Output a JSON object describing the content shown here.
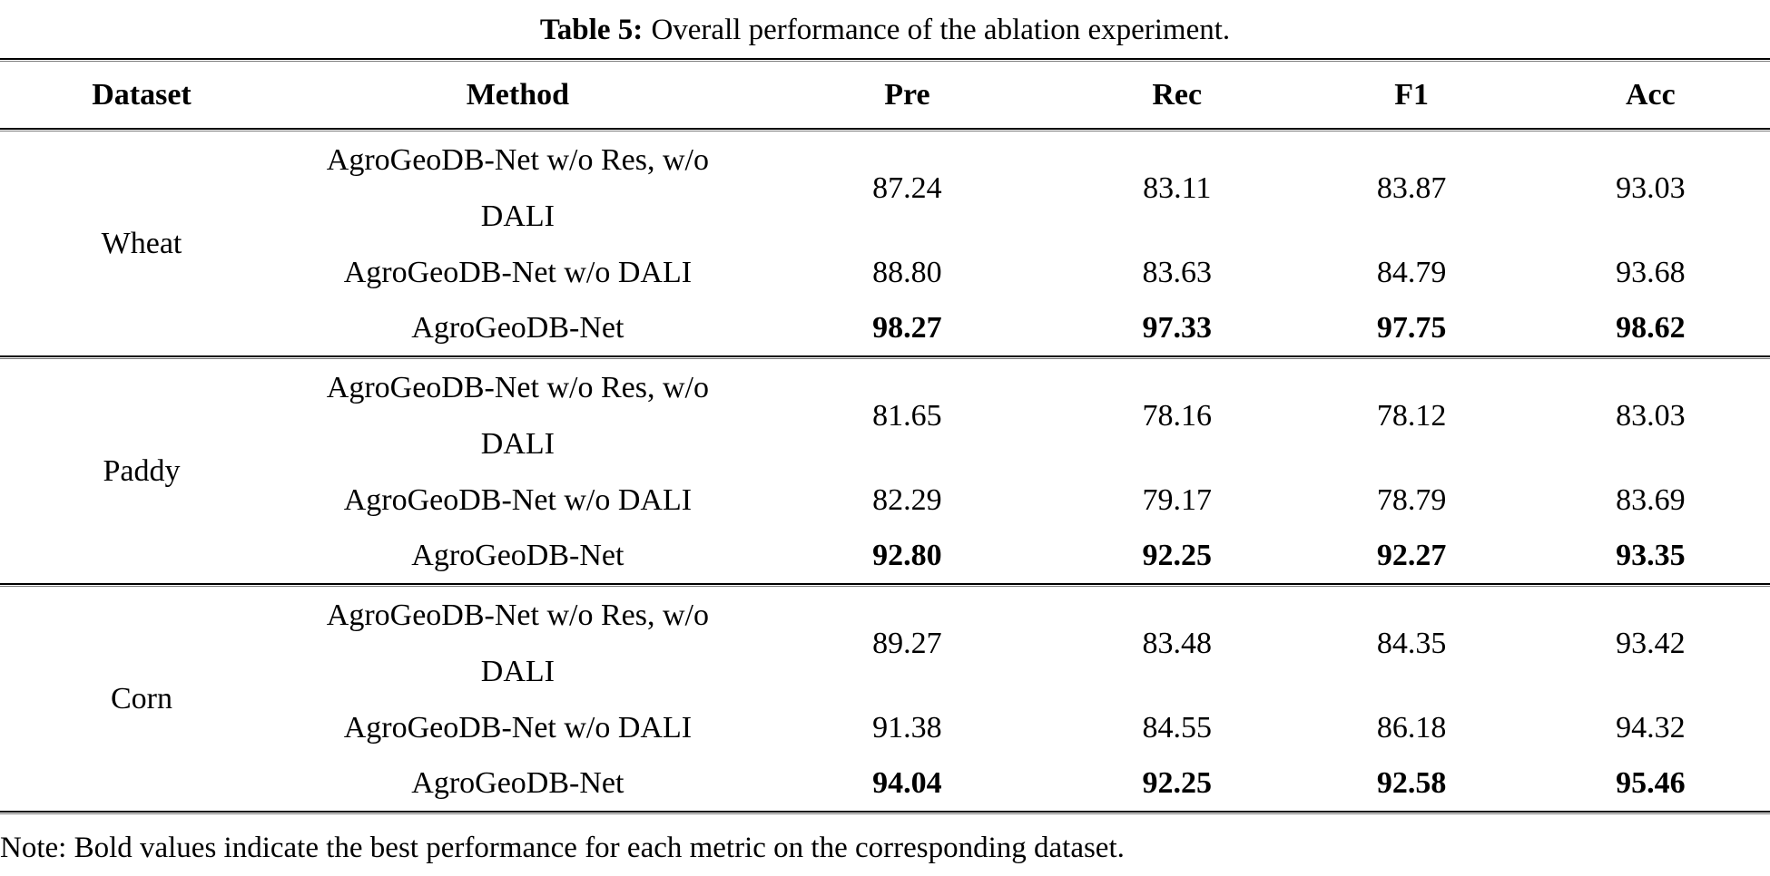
{
  "title": {
    "label": "Table 5:",
    "text": "Overall performance of the ablation experiment."
  },
  "table": {
    "headers": [
      "Dataset",
      "Method",
      "Pre",
      "Rec",
      "F1",
      "Acc"
    ],
    "sections": [
      {
        "dataset": "Wheat",
        "rows": [
          {
            "method": "AgroGeoDB-Net w/o Res, w/o\nDALI",
            "values": [
              "87.24",
              "83.11",
              "83.87",
              "93.03"
            ],
            "best": false
          },
          {
            "method": "AgroGeoDB-Net w/o DALI",
            "values": [
              "88.80",
              "83.63",
              "84.79",
              "93.68"
            ],
            "best": false
          },
          {
            "method": "AgroGeoDB-Net",
            "values": [
              "98.27",
              "97.33",
              "97.75",
              "98.62"
            ],
            "best": true
          }
        ]
      },
      {
        "dataset": "Paddy",
        "rows": [
          {
            "method": "AgroGeoDB-Net w/o Res, w/o\nDALI",
            "values": [
              "81.65",
              "78.16",
              "78.12",
              "83.03"
            ],
            "best": false
          },
          {
            "method": "AgroGeoDB-Net w/o DALI",
            "values": [
              "82.29",
              "79.17",
              "78.79",
              "83.69"
            ],
            "best": false
          },
          {
            "method": "AgroGeoDB-Net",
            "values": [
              "92.80",
              "92.25",
              "92.27",
              "93.35"
            ],
            "best": true
          }
        ]
      },
      {
        "dataset": "Corn",
        "rows": [
          {
            "method": "AgroGeoDB-Net w/o Res, w/o\nDALI",
            "values": [
              "89.27",
              "83.48",
              "84.35",
              "93.42"
            ],
            "best": false
          },
          {
            "method": "AgroGeoDB-Net w/o DALI",
            "values": [
              "91.38",
              "84.55",
              "86.18",
              "94.32"
            ],
            "best": false
          },
          {
            "method": "AgroGeoDB-Net",
            "values": [
              "94.04",
              "92.25",
              "92.58",
              "95.46"
            ],
            "best": true
          }
        ]
      }
    ]
  },
  "note": "Note: Bold values indicate the best performance for each metric on the corresponding dataset.",
  "colors": {
    "text": "#000000",
    "background": "#ffffff",
    "rule": "#000000"
  }
}
